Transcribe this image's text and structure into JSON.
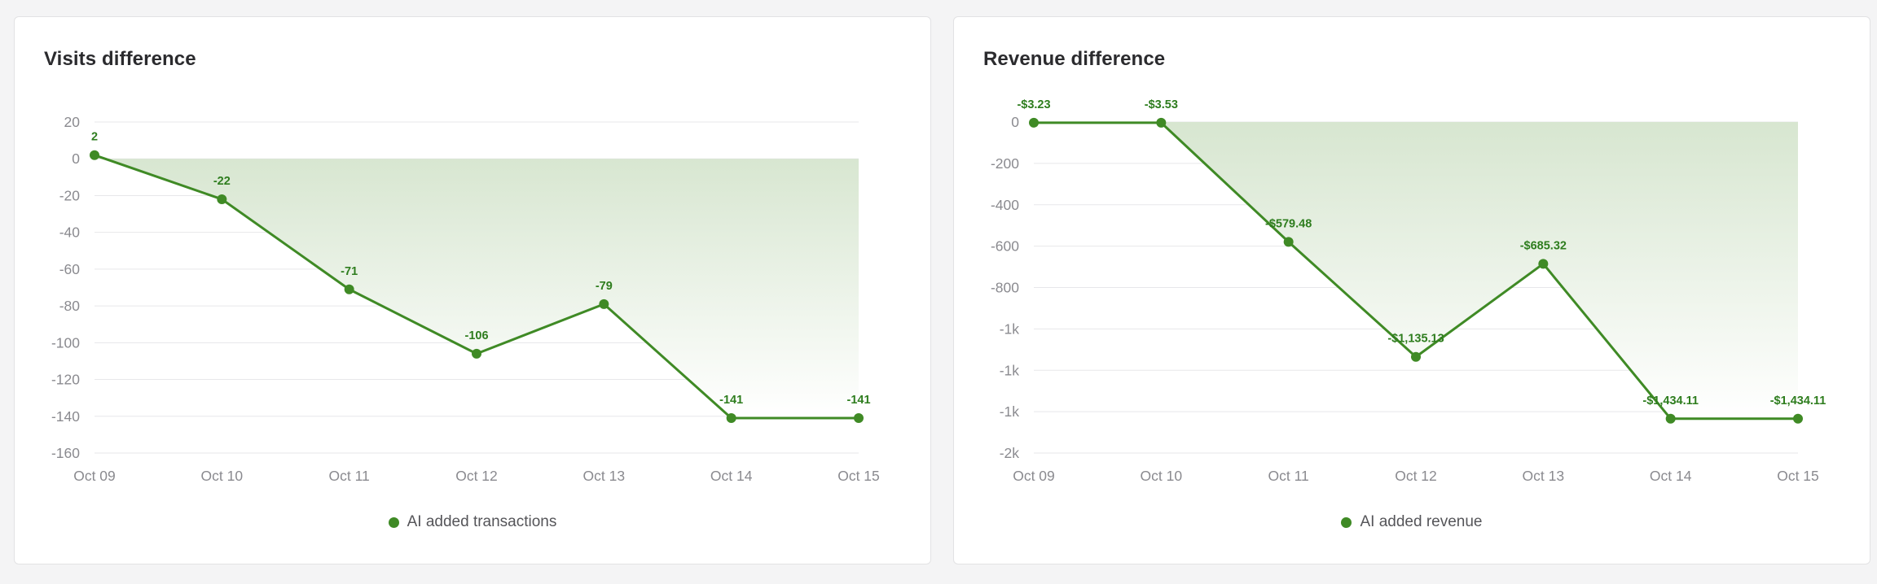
{
  "colors": {
    "accent": "#3f8a25",
    "label": "#2e7d1e",
    "grid": "#e7e7ea",
    "area_top": "#d7e6d0",
    "area_bottom": "#ffffff"
  },
  "charts": [
    {
      "title": "Visits difference",
      "legend": "AI added transactions"
    },
    {
      "title": "Revenue difference",
      "legend": "AI added revenue"
    }
  ],
  "chart_data": [
    {
      "type": "area",
      "title": "Visits difference",
      "xlabel": "",
      "ylabel": "",
      "categories": [
        "Oct 09",
        "Oct 10",
        "Oct 11",
        "Oct 12",
        "Oct 13",
        "Oct 14",
        "Oct 15"
      ],
      "series": [
        {
          "name": "AI added transactions",
          "values": [
            2,
            -22,
            -71,
            -106,
            -79,
            -141,
            -141
          ],
          "labels": [
            "2",
            "-22",
            "-71",
            "-106",
            "-79",
            "-141",
            "-141"
          ]
        }
      ],
      "y_ticks": [
        20,
        0,
        -20,
        -40,
        -60,
        -80,
        -100,
        -120,
        -140,
        -160
      ],
      "y_tick_labels": [
        "20",
        "0",
        "-20",
        "-40",
        "-60",
        "-80",
        "-100",
        "-120",
        "-140",
        "-160"
      ],
      "ylim": [
        -160,
        20
      ],
      "grid": true,
      "legend_position": "bottom-center"
    },
    {
      "type": "area",
      "title": "Revenue difference",
      "xlabel": "",
      "ylabel": "",
      "categories": [
        "Oct 09",
        "Oct 10",
        "Oct 11",
        "Oct 12",
        "Oct 13",
        "Oct 14",
        "Oct 15"
      ],
      "series": [
        {
          "name": "AI added revenue",
          "values": [
            -3.23,
            -3.53,
            -579.48,
            -1135.13,
            -685.32,
            -1434.11,
            -1434.11
          ],
          "labels": [
            "-$3.23",
            "-$3.53",
            "-$579.48",
            "-$1,135.13",
            "-$685.32",
            "-$1,434.11",
            "-$1,434.11"
          ]
        }
      ],
      "y_ticks": [
        0,
        -200,
        -400,
        -600,
        -800,
        -1000,
        -1200,
        -1400,
        -1600
      ],
      "y_tick_labels": [
        "0",
        "-200",
        "-400",
        "-600",
        "-800",
        "-1k",
        "-1k",
        "-1k",
        "-2k"
      ],
      "ylim": [
        -1600,
        0
      ],
      "grid": true,
      "legend_position": "bottom-center"
    }
  ]
}
